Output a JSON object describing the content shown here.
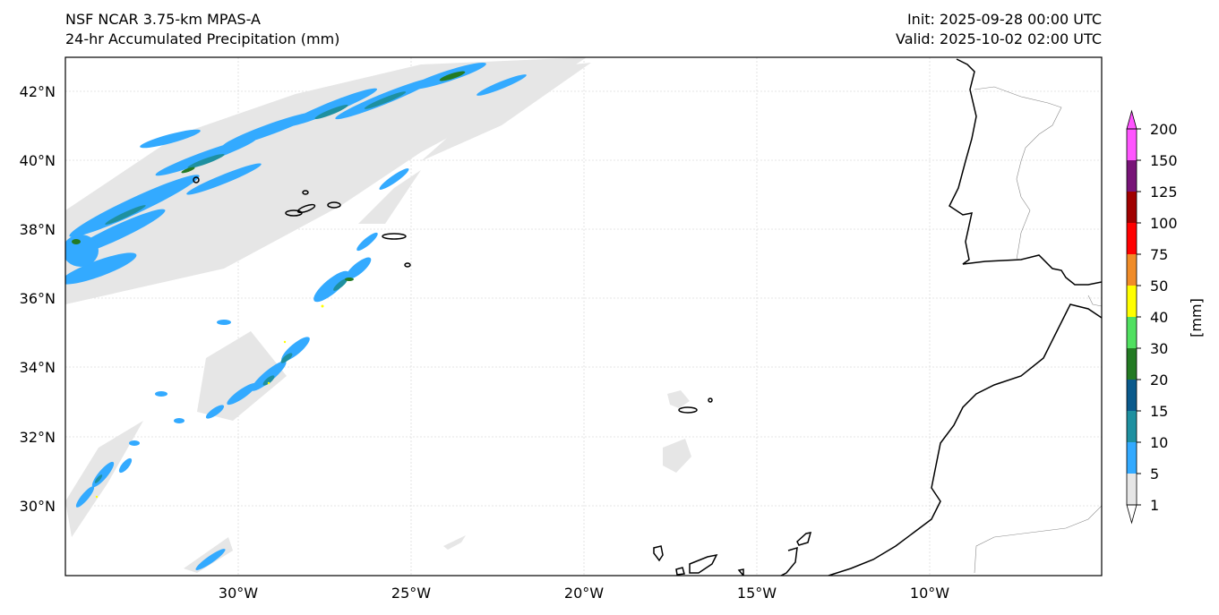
{
  "header": {
    "model": "NSF NCAR 3.75-km MPAS-A",
    "product": "24-hr Accumulated Precipitation (mm)",
    "init": "Init: 2025-09-28 00:00 UTC",
    "valid": "Valid: 2025-10-02 02:00 UTC"
  },
  "map": {
    "lat_labels": [
      "42°N",
      "40°N",
      "38°N",
      "36°N",
      "34°N",
      "32°N",
      "30°N"
    ],
    "lon_labels": [
      "30°W",
      "25°W",
      "20°W",
      "15°W",
      "10°W"
    ]
  },
  "colorbar": {
    "unit_label": "[mm]",
    "ticks": [
      "1",
      "5",
      "10",
      "15",
      "20",
      "30",
      "40",
      "50",
      "75",
      "100",
      "125",
      "150",
      "200"
    ],
    "colors": [
      "#e6e6e6",
      "#33aaff",
      "#1e90a0",
      "#0a5a8c",
      "#237a23",
      "#50e060",
      "#ffff00",
      "#f08c28",
      "#ff0000",
      "#a00000",
      "#781478",
      "#ff55ff"
    ]
  }
}
